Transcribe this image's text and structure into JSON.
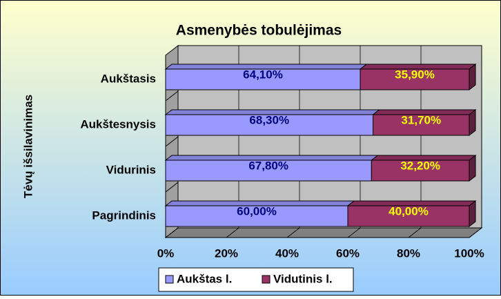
{
  "chart_data": {
    "type": "stacked_bar_horizontal_3d",
    "title": "Asmenybės tobulėjimas",
    "y_label": "Tėvų išsilavinimas",
    "categories": [
      "Aukštasis",
      "Aukštesnysis",
      "Vidurinis",
      "Pagrindinis"
    ],
    "series": [
      {
        "name": "Aukštas l.",
        "color": "#9999ff",
        "label_color": "#000080",
        "values": [
          64.1,
          68.3,
          67.8,
          60.0
        ],
        "value_labels": [
          "64,10%",
          "68,30%",
          "67,80%",
          "60,00%"
        ]
      },
      {
        "name": "Vidutinis l.",
        "color": "#993366",
        "label_color": "#ffff00",
        "values": [
          35.9,
          31.7,
          32.2,
          40.0
        ],
        "value_labels": [
          "35,90%",
          "31,70%",
          "32,20%",
          "40,00%"
        ]
      }
    ],
    "xlim": [
      0,
      100
    ],
    "xticks": [
      {
        "value": 0,
        "label": "0%"
      },
      {
        "value": 20,
        "label": "20%"
      },
      {
        "value": 40,
        "label": "40%"
      },
      {
        "value": 60,
        "label": "60%"
      },
      {
        "value": 80,
        "label": "80%"
      },
      {
        "value": 100,
        "label": "100%"
      }
    ],
    "grid": true,
    "legend": "bottom"
  }
}
